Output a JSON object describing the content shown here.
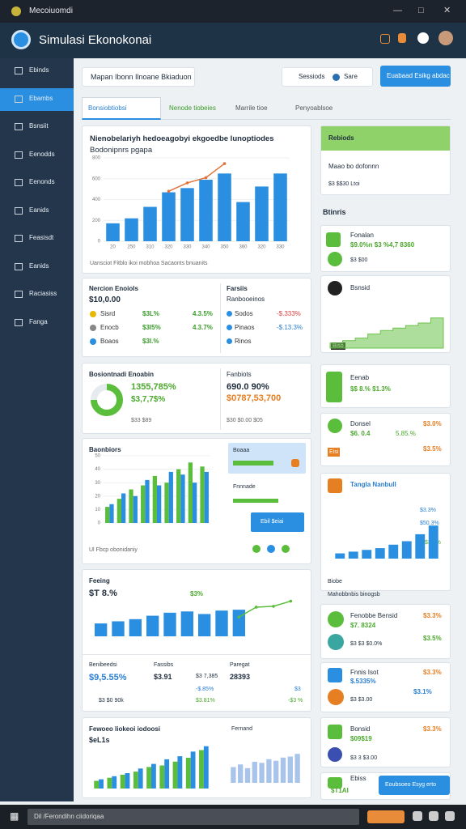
{
  "window": {
    "title": "Mecoiuomdi"
  },
  "app": {
    "title": "Simulasi Ekonokonai"
  },
  "sidebar": {
    "active": 1,
    "items": [
      "Ebinds",
      "Ebambs",
      "Bsnsiit",
      "Eenodds",
      "Eenonds",
      "Eanids",
      "Feasisdt",
      "Eanids",
      "Raciasiss",
      "Fanga"
    ]
  },
  "toolbar": {
    "search": "Mapan Ibonn Ilnoane Bkiaduon",
    "filter": "Sessiods",
    "share": "Sare",
    "action": "Euabaad Esikg abdac"
  },
  "tabs": {
    "active": 0,
    "items": [
      "Bonsiobtiobsi",
      "Nenode tiobeies",
      "Marrile tioe",
      "Penyoablsoe"
    ]
  },
  "overview": {
    "title": "Nienobelariyh hedoeagobyi ekgoedbe lunoptiodes",
    "subtitle": "Bodonipnrs pgapa",
    "footer": "Uansciot Fitblo ikoi mobhoa Sacaonts bnuanits"
  },
  "summary": {
    "left": {
      "title": "Nercion Enoiols",
      "total": "$10,0.00",
      "rows": [
        [
          "Sisrd",
          "$3L%",
          "4.3.5%"
        ],
        [
          "Enocb",
          "$3I5%",
          "4.3.7%"
        ],
        [
          "Boaos",
          "$3I.%"
        ]
      ]
    },
    "right": {
      "title": "Farsiis",
      "subtitle": "Ranbooeinos",
      "rows": [
        [
          "Sodos",
          "-$.333%"
        ],
        [
          "Pinaos",
          "-$.13.3%"
        ],
        [
          "Rinos"
        ]
      ]
    }
  },
  "growth": {
    "title": "Bosiontnadi Enoabin",
    "value": "1355,785%",
    "change": "$3,7,7$%",
    "note": "$33 $89",
    "side_title": "Fanbiots",
    "side_value": "690.0 90%",
    "side_change": "$0787,53,700",
    "side_note": "$30 $0.00 $05"
  },
  "compare": {
    "title": "Baonbiors",
    "footer": "Ul Fbcp obonidaniy",
    "side": {
      "title": "Boaaa",
      "label": "Fnnnade",
      "button": "Ebil $eiai"
    }
  },
  "trend": {
    "title": "Feeing",
    "value": "$T 8.%",
    "peak": "$3%",
    "stats": [
      {
        "title": "Benibeedsi",
        "value": "$9,5.55%",
        "note": "$3 $0 90k"
      },
      {
        "title": "Fassibs",
        "value": "$3.91",
        "note": "$3 7,385",
        "up": "-$.85%",
        "down": "$3.81%"
      },
      {
        "title": "Paregat",
        "value": "28393",
        "up": "$3",
        "down": "-$3 %"
      }
    ]
  },
  "forecast": {
    "title": "Fewoeo liokeoi iodoosi",
    "value": "$eL1s",
    "side": "Fernand"
  },
  "highlight": {
    "title": "Rebiods",
    "label": "Maao bo dofonnn",
    "note": "$3 $$30 Ltoi"
  },
  "list": {
    "title": "Btinris",
    "cards": [
      {
        "title": "Fonalan",
        "value": "$9.0%n $3 %4,7 8360",
        "note": "$3 $00"
      },
      {
        "title": "Bsnsid",
        "note": "Biso"
      },
      {
        "title": "Eenab",
        "value": "$$ 8.% $1.3%"
      },
      {
        "title": "Donsel",
        "value": "$6. 0.4",
        "a": "$3.0%",
        "b": "5.85.%",
        "tag": "Eisi",
        "c": "$3.5%"
      },
      {
        "title": "Tangla Nanbull",
        "a": "$3.3%",
        "b": "$50.3%",
        "c": "$3.1%",
        "foot": "Biobe",
        "note": "Mahobbnbis binogsb"
      },
      {
        "title": "Fenobbe Bensid",
        "value": "$7. 8324",
        "note": "$3 $3 $0.0%",
        "a": "$3.3%",
        "b": "$3.5%"
      },
      {
        "title": "Fnnis Isot",
        "value": "$.5335%",
        "note": "$3 $3.00",
        "a": "$3.3%",
        "b": "$3.1%"
      },
      {
        "title": "Bonsid",
        "value": "$09$19",
        "note": "$3 3 $3.00",
        "a": "$3.3%"
      },
      {
        "title": "Ebiss",
        "value": "$T1AI",
        "button": "Eoubsoeo Esyg erto"
      }
    ]
  },
  "taskbar": {
    "search": "Dil /Ferondihn ciidoriqaa"
  },
  "charts": {
    "main": {
      "type": "bar",
      "ylim": [
        0,
        800
      ],
      "yticks": [
        0,
        200,
        400,
        600,
        800
      ],
      "categories": [
        "20",
        "250",
        "310",
        "320",
        "330",
        "340",
        "350",
        "360",
        "320",
        "330"
      ],
      "series": [
        {
          "color": "#2a8fe0",
          "values": [
            172,
            220,
            330,
            470,
            510,
            590,
            650,
            376,
            525,
            650
          ]
        },
        {
          "type": "line",
          "color": "#e0733a",
          "values": [
            null,
            null,
            null,
            480,
            560,
            610,
            745,
            null,
            null,
            null
          ]
        }
      ]
    },
    "grouped": {
      "type": "bar",
      "ylim": [
        0,
        50
      ],
      "yticks": [
        0,
        10,
        20,
        30,
        40,
        50
      ],
      "series": [
        {
          "color": "#5bbd3c",
          "values": [
            12,
            18,
            25,
            28,
            35,
            30,
            40,
            45,
            42
          ]
        },
        {
          "color": "#2a8fe0",
          "values": [
            14,
            22,
            20,
            32,
            28,
            38,
            36,
            30,
            38
          ]
        }
      ]
    },
    "trend": {
      "type": "bar",
      "ylim": [
        0,
        100
      ],
      "series": [
        {
          "color": "#2a8fe0",
          "values": [
            30,
            35,
            40,
            48,
            55,
            58,
            52,
            60,
            62,
            null,
            null,
            null
          ]
        },
        {
          "type": "line",
          "color": "#5bbd3c",
          "values": [
            null,
            null,
            null,
            null,
            null,
            null,
            null,
            null,
            45,
            68,
            70,
            82
          ]
        }
      ]
    },
    "bottom_a": {
      "type": "bar",
      "ylim": [
        0,
        60
      ],
      "series": [
        {
          "color": "#5bbd3c",
          "values": [
            10,
            14,
            18,
            22,
            28,
            30,
            35,
            40,
            50
          ]
        },
        {
          "color": "#2a8fe0",
          "values": [
            12,
            16,
            20,
            26,
            32,
            38,
            42,
            48,
            55
          ]
        }
      ]
    },
    "bottom_b": {
      "type": "bar",
      "ylim": [
        0,
        60
      ],
      "series": [
        {
          "color": "#a9c4ea",
          "values": [
            30,
            35,
            28,
            40,
            38,
            45,
            42,
            48,
            50,
            55
          ]
        }
      ]
    },
    "side": {
      "type": "bar",
      "ylim": [
        0,
        100
      ],
      "series": [
        {
          "color": "#2a8fe0",
          "values": [
            15,
            20,
            25,
            30,
            40,
            50,
            70,
            95
          ]
        }
      ]
    },
    "area": {
      "type": "area",
      "ylim": [
        0,
        100
      ],
      "color": "#6cc24a",
      "values": [
        10,
        15,
        20,
        28,
        35,
        40,
        45,
        50,
        60
      ]
    },
    "donut": {
      "type": "pie",
      "values": [
        75,
        25
      ],
      "colors": [
        "#5bbd3c",
        "#e6ebef"
      ]
    }
  }
}
